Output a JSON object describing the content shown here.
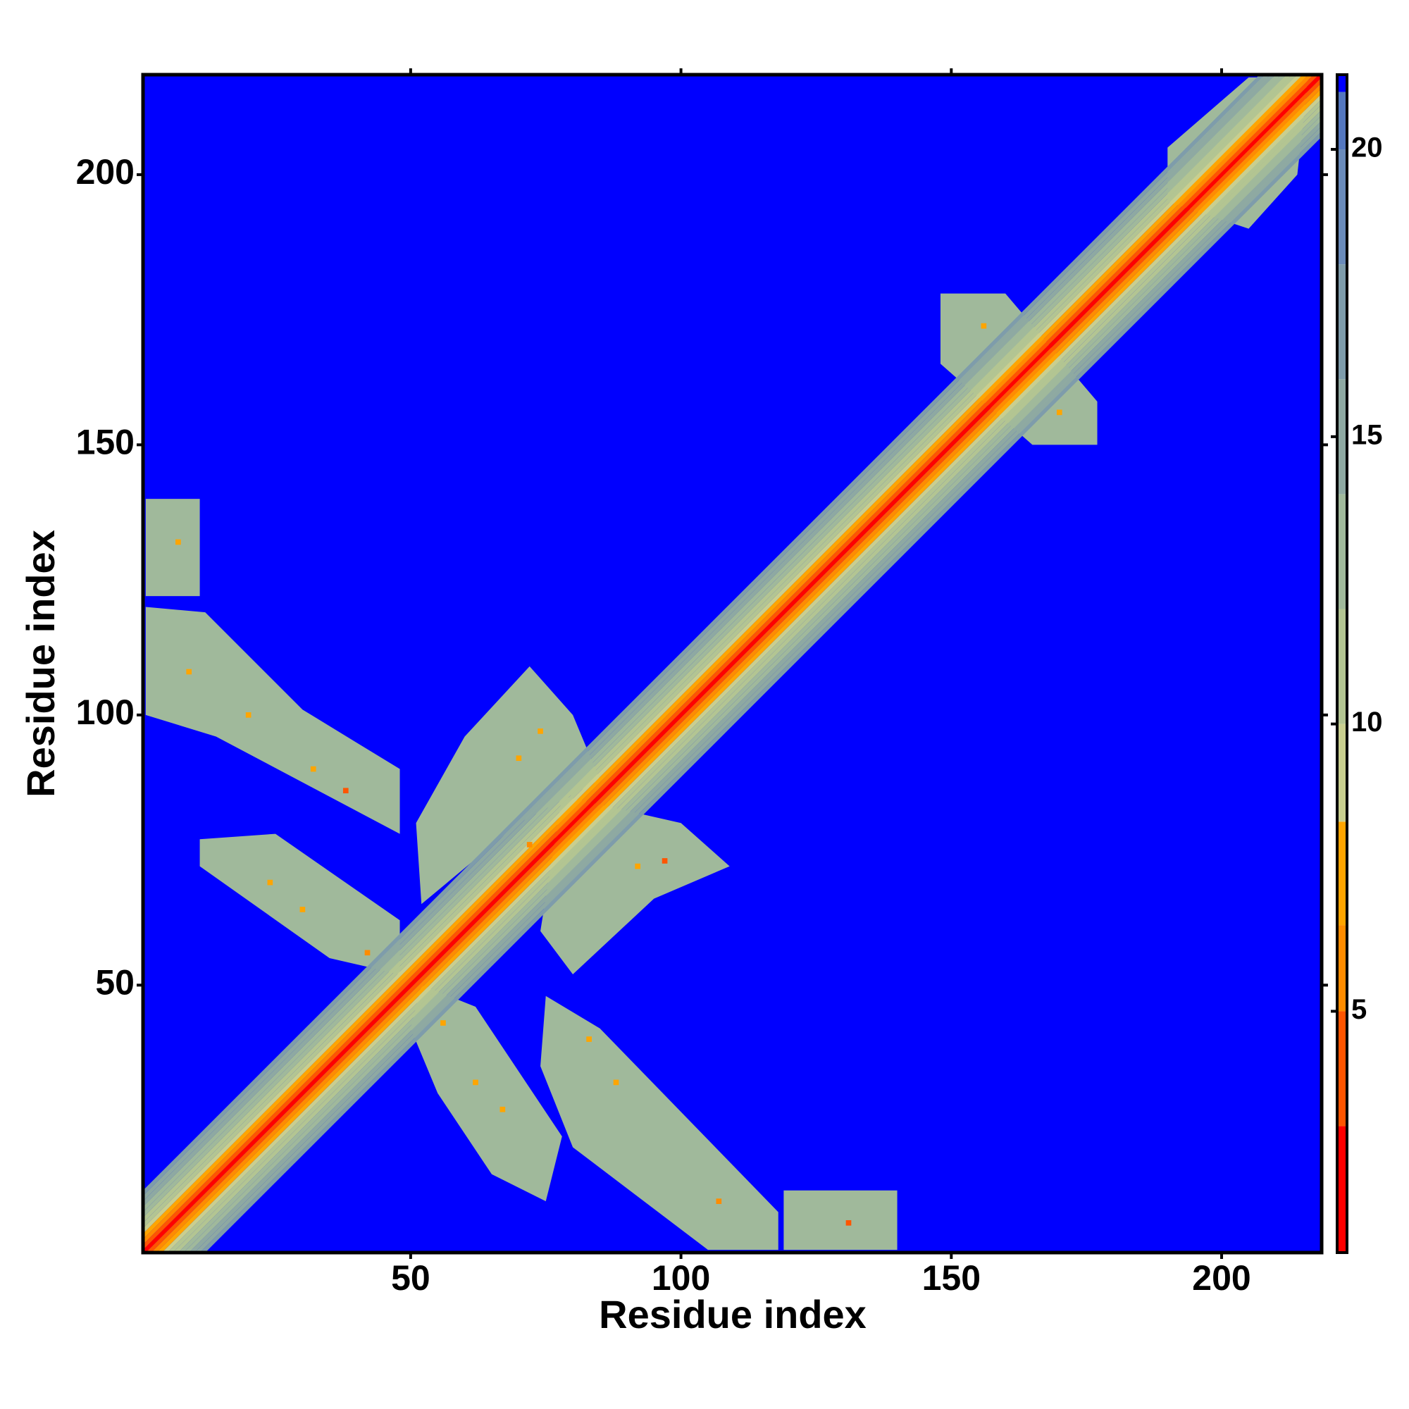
{
  "chart_data": {
    "type": "heatmap",
    "x_label": "Residue index",
    "y_label": "Residue index",
    "xlim": [
      0.5,
      218.5
    ],
    "ylim": [
      0.5,
      218.5
    ],
    "xticks": [
      50,
      100,
      150,
      200
    ],
    "yticks": [
      50,
      100,
      150,
      200
    ],
    "clim": [
      0.8,
      21.3
    ],
    "cticks": [
      5,
      10,
      15,
      20
    ],
    "colorscale": [
      {
        "value": 0.8,
        "color": "#ff0000"
      },
      {
        "value": 3,
        "color": "#ff5500"
      },
      {
        "value": 5,
        "color": "#ff8c00"
      },
      {
        "value": 6.5,
        "color": "#ffa500"
      },
      {
        "value": 8.3,
        "color": "#c9cf8f"
      },
      {
        "value": 10,
        "color": "#b3c592"
      },
      {
        "value": 12,
        "color": "#a0b99b"
      },
      {
        "value": 14,
        "color": "#8ea9a2"
      },
      {
        "value": 16,
        "color": "#7e9cab"
      },
      {
        "value": 18,
        "color": "#6a8bba"
      },
      {
        "value": 20,
        "color": "#5477bf"
      },
      {
        "value": 21,
        "color": "#0000ff"
      }
    ],
    "background": 21.2,
    "diagonal": [
      {
        "offset": 11,
        "value": 16
      },
      {
        "offset": 10,
        "value": 14
      },
      {
        "offset": 9,
        "value": 14
      },
      {
        "offset": 8,
        "value": 12
      },
      {
        "offset": 7,
        "value": 12
      },
      {
        "offset": 6,
        "value": 10
      },
      {
        "offset": 5,
        "value": 10
      },
      {
        "offset": 4,
        "value": 8.5
      },
      {
        "offset": 3,
        "value": 6.5
      },
      {
        "offset": 2,
        "value": 5
      },
      {
        "offset": 1,
        "value": 3
      },
      {
        "offset": 0,
        "value": 1.5
      }
    ],
    "patches": [
      {
        "points": [
          [
            1,
            122
          ],
          [
            11,
            122
          ],
          [
            11,
            140
          ],
          [
            1,
            140
          ]
        ],
        "value": 12
      },
      {
        "points": [
          [
            1,
            100
          ],
          [
            14,
            96
          ],
          [
            48,
            78
          ],
          [
            48,
            90
          ],
          [
            30,
            101
          ],
          [
            12,
            119
          ],
          [
            1,
            120
          ]
        ],
        "value": 12
      },
      {
        "points": [
          [
            11,
            72
          ],
          [
            35,
            55
          ],
          [
            48,
            52
          ],
          [
            48,
            62
          ],
          [
            25,
            78
          ],
          [
            11,
            77
          ]
        ],
        "value": 12
      },
      {
        "points": [
          [
            52,
            65
          ],
          [
            70,
            80
          ],
          [
            85,
            88
          ],
          [
            80,
            100
          ],
          [
            72,
            109
          ],
          [
            60,
            96
          ],
          [
            51,
            80
          ]
        ],
        "value": 12
      },
      {
        "points": [
          [
            74,
            60
          ],
          [
            80,
            52
          ],
          [
            95,
            66
          ],
          [
            109,
            72
          ],
          [
            100,
            80
          ],
          [
            78,
            85
          ]
        ],
        "value": 12
      },
      {
        "points": [
          [
            50,
            42
          ],
          [
            55,
            30
          ],
          [
            65,
            15
          ],
          [
            75,
            10
          ],
          [
            78,
            22
          ],
          [
            62,
            46
          ],
          [
            52,
            50
          ]
        ],
        "value": 12
      },
      {
        "points": [
          [
            74,
            35
          ],
          [
            80,
            20
          ],
          [
            105,
            1
          ],
          [
            118,
            1
          ],
          [
            118,
            8
          ],
          [
            85,
            42
          ],
          [
            75,
            48
          ]
        ],
        "value": 12
      },
      {
        "points": [
          [
            119,
            1
          ],
          [
            140,
            1
          ],
          [
            140,
            12
          ],
          [
            119,
            12
          ]
        ],
        "value": 12
      },
      {
        "points": [
          [
            148,
            165
          ],
          [
            165,
            150
          ],
          [
            177,
            150
          ],
          [
            177,
            158
          ],
          [
            160,
            178
          ],
          [
            148,
            178
          ]
        ],
        "value": 12
      },
      {
        "points": [
          [
            190,
            195
          ],
          [
            205,
            190
          ],
          [
            214,
            200
          ],
          [
            216,
            218
          ],
          [
            205,
            218
          ],
          [
            190,
            205
          ]
        ],
        "value": 12
      }
    ],
    "spots": [
      {
        "x": 7,
        "y": 132,
        "value": 6.5
      },
      {
        "x": 9,
        "y": 108,
        "value": 6.5
      },
      {
        "x": 20,
        "y": 100,
        "value": 6.5
      },
      {
        "x": 32,
        "y": 90,
        "value": 6.5
      },
      {
        "x": 38,
        "y": 86,
        "value": 3
      },
      {
        "x": 24,
        "y": 69,
        "value": 6.5
      },
      {
        "x": 30,
        "y": 64,
        "value": 6.5
      },
      {
        "x": 42,
        "y": 56,
        "value": 5
      },
      {
        "x": 70,
        "y": 92,
        "value": 6.5
      },
      {
        "x": 74,
        "y": 97,
        "value": 6.5
      },
      {
        "x": 72,
        "y": 76,
        "value": 5
      },
      {
        "x": 92,
        "y": 72,
        "value": 6.5
      },
      {
        "x": 97,
        "y": 73,
        "value": 3
      },
      {
        "x": 56,
        "y": 43,
        "value": 6.5
      },
      {
        "x": 62,
        "y": 32,
        "value": 6.5
      },
      {
        "x": 67,
        "y": 27,
        "value": 6.5
      },
      {
        "x": 83,
        "y": 40,
        "value": 6.5
      },
      {
        "x": 88,
        "y": 32,
        "value": 6.5
      },
      {
        "x": 107,
        "y": 10,
        "value": 5
      },
      {
        "x": 131,
        "y": 6,
        "value": 3
      },
      {
        "x": 156,
        "y": 172,
        "value": 6.5
      },
      {
        "x": 170,
        "y": 156,
        "value": 6.5
      }
    ]
  }
}
